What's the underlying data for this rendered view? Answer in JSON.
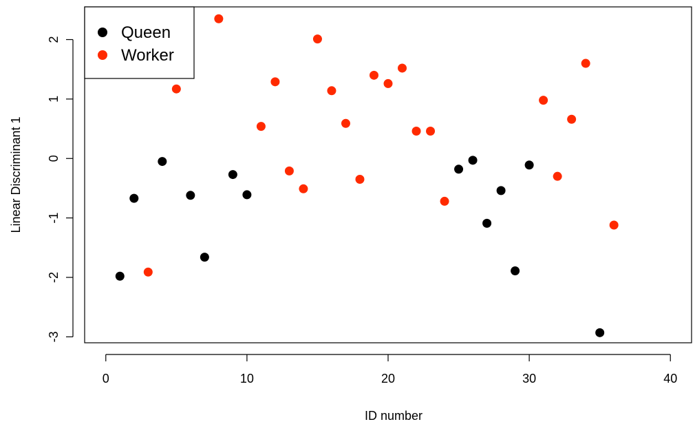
{
  "chart_data": {
    "type": "scatter",
    "title": "",
    "xlabel": "ID number",
    "ylabel": "Linear Discriminant 1",
    "xlim": [
      -1.5,
      41.5
    ],
    "ylim": [
      -3.1,
      2.55
    ],
    "xticks": [
      0,
      10,
      20,
      30,
      40
    ],
    "xtick_labels": [
      "0",
      "10",
      "20",
      "30",
      "40"
    ],
    "yticks": [
      -3,
      -2,
      -1,
      0,
      1,
      2
    ],
    "ytick_labels": [
      "-3",
      "-2",
      "-1",
      "0",
      "1",
      "2"
    ],
    "grid": false,
    "legend_position": "top-left",
    "series": [
      {
        "name": "Queen",
        "color": "#000000",
        "x": [
          1,
          2,
          4,
          6,
          7,
          9,
          10,
          25,
          26,
          27,
          28,
          29,
          30,
          35
        ],
        "y": [
          -1.98,
          -0.67,
          -0.05,
          -0.62,
          -1.66,
          -0.27,
          -0.61,
          -0.18,
          -0.03,
          -1.09,
          -0.54,
          -1.89,
          -0.11,
          -2.93
        ]
      },
      {
        "name": "Worker",
        "color": "#ff2a00",
        "x": [
          3,
          5,
          8,
          11,
          12,
          13,
          14,
          15,
          16,
          17,
          18,
          19,
          20,
          21,
          22,
          23,
          24,
          31,
          32,
          33,
          34,
          36
        ],
        "y": [
          -1.91,
          1.17,
          2.35,
          0.54,
          1.29,
          -0.21,
          -0.51,
          2.01,
          1.14,
          0.59,
          -0.35,
          1.4,
          1.26,
          1.52,
          0.46,
          0.46,
          -0.72,
          0.98,
          -0.3,
          0.66,
          1.6,
          -1.12
        ]
      }
    ]
  }
}
